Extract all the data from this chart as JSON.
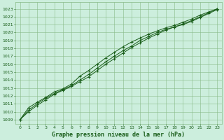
{
  "title": "Graphe pression niveau de la mer (hPa)",
  "background_color": "#cceedd",
  "plot_bg_color": "#cceedd",
  "grid_color": "#88bb88",
  "line_color": "#1a5e1a",
  "xlim": [
    -0.5,
    23.5
  ],
  "ylim": [
    1008.5,
    1023.8
  ],
  "yticks": [
    1009,
    1010,
    1011,
    1012,
    1013,
    1014,
    1015,
    1016,
    1017,
    1018,
    1019,
    1020,
    1021,
    1022,
    1023
  ],
  "xticks": [
    0,
    1,
    2,
    3,
    4,
    5,
    6,
    7,
    8,
    9,
    10,
    11,
    12,
    13,
    14,
    15,
    16,
    17,
    18,
    19,
    20,
    21,
    22,
    23
  ],
  "line1": [
    1009.0,
    1010.5,
    1011.2,
    1011.8,
    1012.5,
    1012.9,
    1013.5,
    1014.5,
    1015.2,
    1016.0,
    1016.8,
    1017.5,
    1018.2,
    1018.8,
    1019.3,
    1019.8,
    1020.2,
    1020.6,
    1020.9,
    1021.3,
    1021.7,
    1022.2,
    1022.6,
    1023.0
  ],
  "line2": [
    1009.0,
    1010.2,
    1011.0,
    1011.7,
    1012.3,
    1012.8,
    1013.3,
    1014.0,
    1014.7,
    1015.5,
    1016.3,
    1017.0,
    1017.7,
    1018.3,
    1019.0,
    1019.5,
    1020.0,
    1020.4,
    1020.7,
    1021.1,
    1021.5,
    1022.0,
    1022.5,
    1023.0
  ],
  "line3": [
    1009.0,
    1010.0,
    1010.8,
    1011.5,
    1012.2,
    1012.7,
    1013.2,
    1013.8,
    1014.4,
    1015.2,
    1016.0,
    1016.7,
    1017.4,
    1018.1,
    1018.7,
    1019.3,
    1019.8,
    1020.3,
    1020.7,
    1021.0,
    1021.4,
    1021.9,
    1022.4,
    1022.9
  ],
  "title_fontsize": 6,
  "tick_fontsize": 4.5,
  "linewidth": 0.7,
  "markersize": 3.5
}
